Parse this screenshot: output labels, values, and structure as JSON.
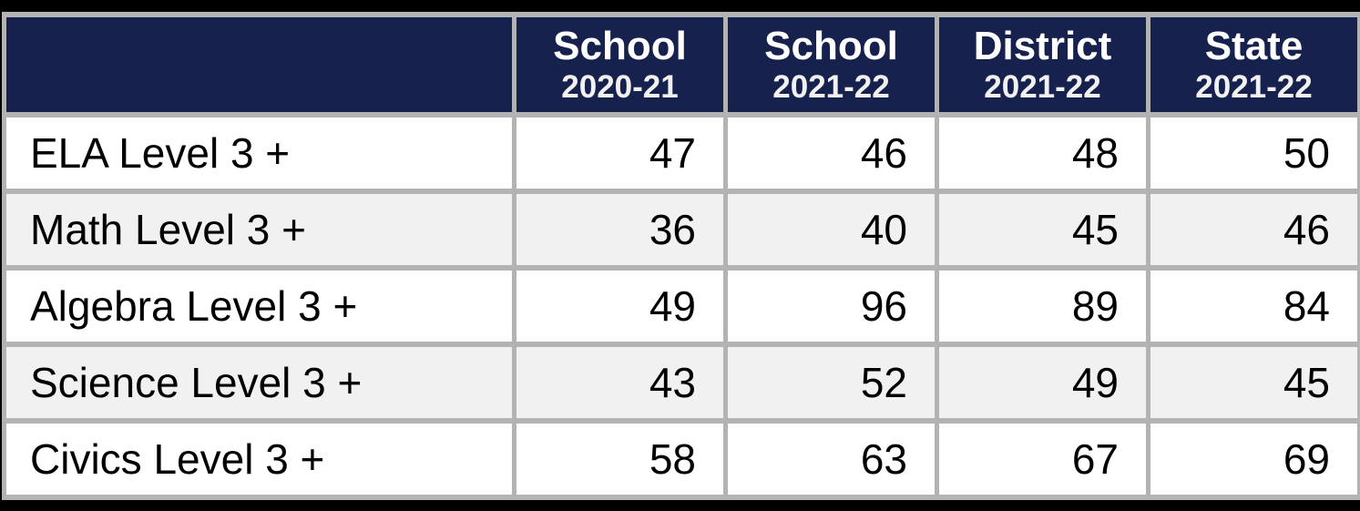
{
  "colors": {
    "page_background": "#000000",
    "header_background": "#16214d",
    "header_text": "#ffffff",
    "grid_border": "#b3b3b3",
    "row_background": "#ffffff",
    "row_alt_background": "#f1f1f1",
    "body_text": "#000000"
  },
  "table": {
    "corner_label": "",
    "columns": [
      {
        "title": "School",
        "subtitle": "2020-21"
      },
      {
        "title": "School",
        "subtitle": "2021-22"
      },
      {
        "title": "District",
        "subtitle": "2021-22"
      },
      {
        "title": "State",
        "subtitle": "2021-22"
      }
    ],
    "rows": [
      {
        "label": "ELA Level 3 +",
        "values": [
          "47",
          "46",
          "48",
          "50"
        ]
      },
      {
        "label": "Math Level 3 +",
        "values": [
          "36",
          "40",
          "45",
          "46"
        ]
      },
      {
        "label": "Algebra Level 3 +",
        "values": [
          "49",
          "96",
          "89",
          "84"
        ]
      },
      {
        "label": "Science Level 3 +",
        "values": [
          "43",
          "52",
          "49",
          "45"
        ]
      },
      {
        "label": "Civics Level 3 +",
        "values": [
          "58",
          "63",
          "67",
          "69"
        ]
      }
    ]
  },
  "chart_data": {
    "type": "table",
    "title": "",
    "categories": [
      "ELA Level 3 +",
      "Math Level 3 +",
      "Algebra Level 3 +",
      "Science Level 3 +",
      "Civics Level 3 +"
    ],
    "series": [
      {
        "name": "School 2020-21",
        "values": [
          47,
          36,
          49,
          43,
          58
        ]
      },
      {
        "name": "School 2021-22",
        "values": [
          46,
          40,
          96,
          52,
          63
        ]
      },
      {
        "name": "District 2021-22",
        "values": [
          48,
          45,
          89,
          49,
          67
        ]
      },
      {
        "name": "State 2021-22",
        "values": [
          50,
          46,
          84,
          45,
          69
        ]
      }
    ]
  }
}
